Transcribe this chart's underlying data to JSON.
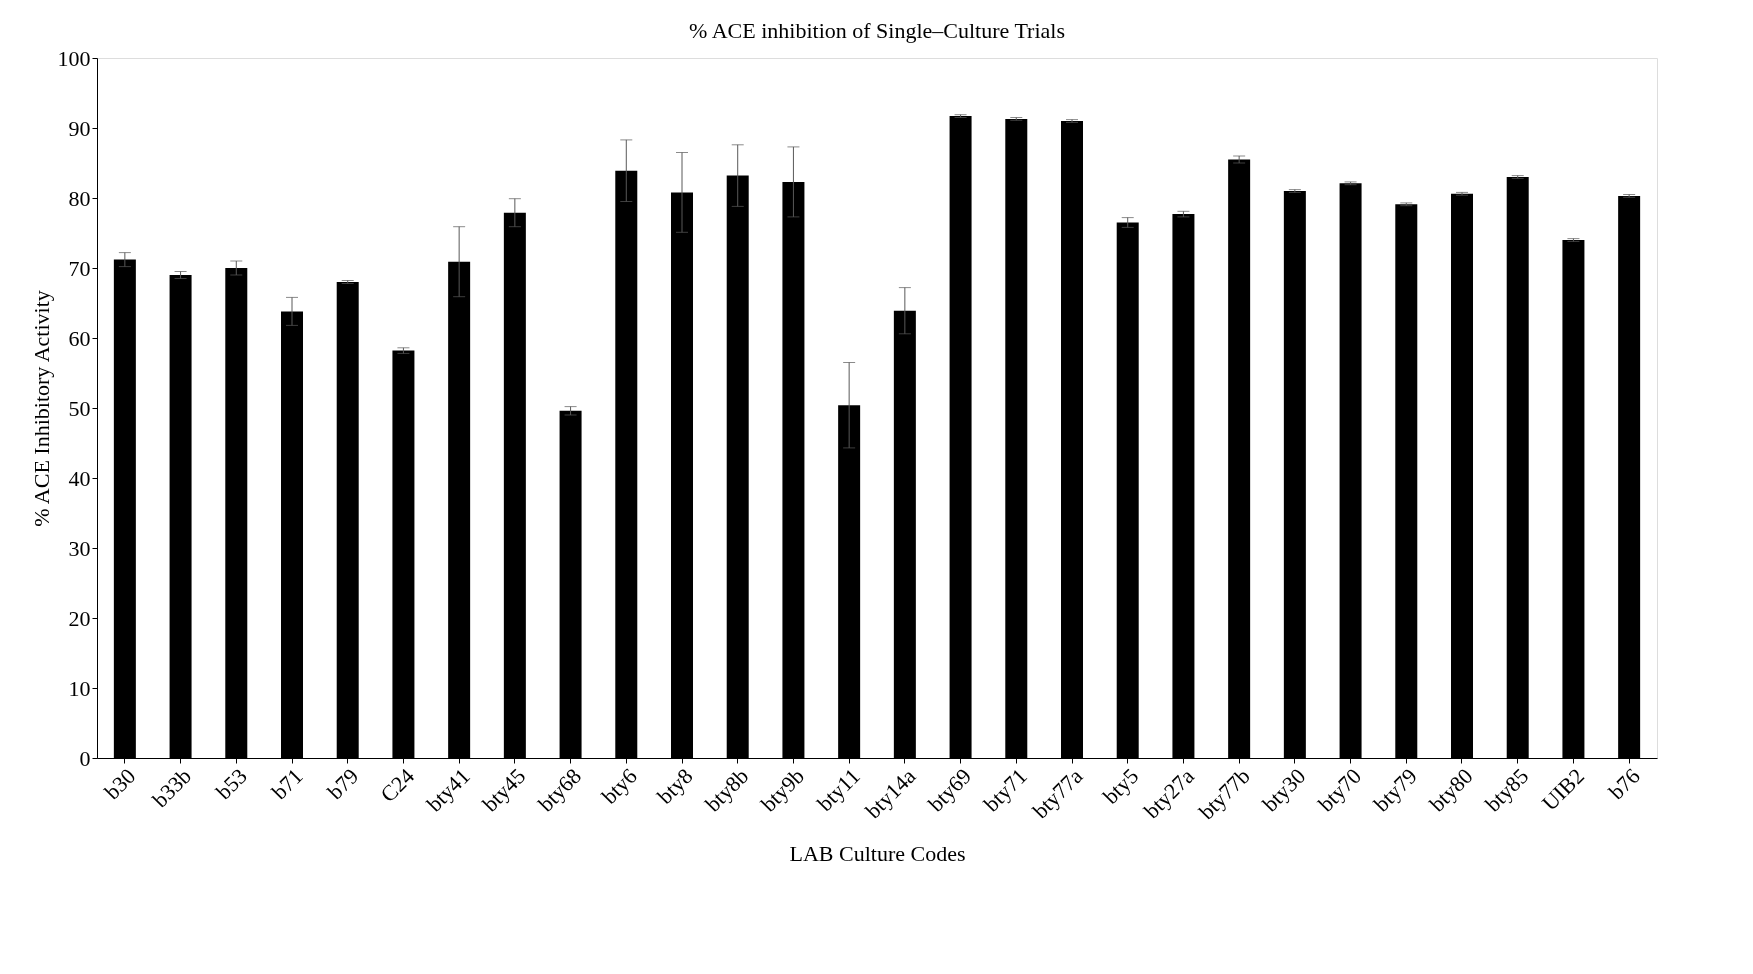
{
  "chart_data": {
    "type": "bar",
    "title": "% ACE inhibition of Single–Culture Trials",
    "xlabel": "LAB Culture Codes",
    "ylabel": "% ACE Inhibitory Activity",
    "categories": [
      "b30",
      "b33b",
      "b53",
      "b71",
      "b79",
      "C24",
      "bty41",
      "bty45",
      "bty68",
      "bty6",
      "bty8",
      "bty8b",
      "bty9b",
      "bty11",
      "bty14a",
      "bty69",
      "bty71",
      "bty77a",
      "bty5",
      "bty27a",
      "bty77b",
      "bty30",
      "bty70",
      "bty79",
      "bty80",
      "bty85",
      "UIB2",
      "b76"
    ],
    "values": [
      71.2,
      69.0,
      70.0,
      63.8,
      68.0,
      58.2,
      70.9,
      77.9,
      49.6,
      83.9,
      80.8,
      83.2,
      82.3,
      50.4,
      63.9,
      91.7,
      91.3,
      91.0,
      76.5,
      77.7,
      85.5,
      81.0,
      82.1,
      79.1,
      80.6,
      83.0,
      74.0,
      80.3
    ],
    "errors": [
      1.0,
      0.5,
      1.0,
      2.0,
      0.2,
      0.4,
      5.0,
      2.0,
      0.6,
      4.4,
      5.7,
      4.4,
      5.0,
      6.1,
      3.3,
      0.2,
      0.2,
      0.2,
      0.7,
      0.4,
      0.5,
      0.2,
      0.2,
      0.2,
      0.2,
      0.2,
      0.2,
      0.2
    ],
    "color": "#000000",
    "ylim": [
      0,
      100
    ],
    "yticks": [
      0,
      10,
      20,
      30,
      40,
      50,
      60,
      70,
      80,
      90,
      100
    ],
    "grid": false
  }
}
